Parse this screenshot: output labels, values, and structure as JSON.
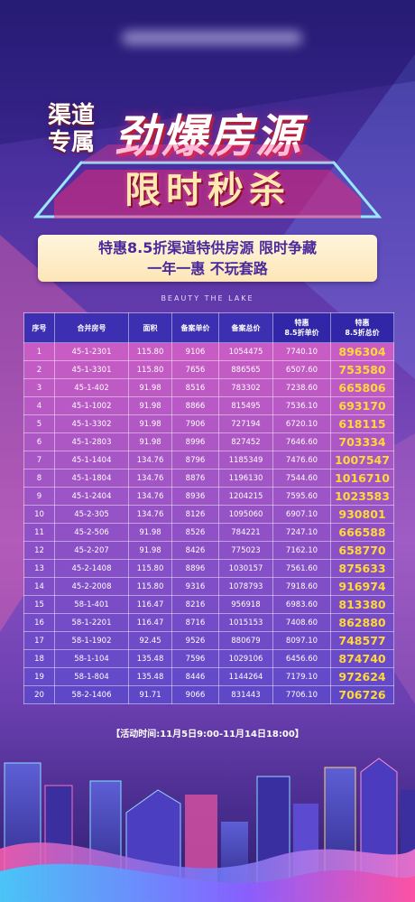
{
  "header": {
    "sub_title_line1": "渠道",
    "sub_title_line2": "专属",
    "main_title": "劲爆房源",
    "banner_text": "限时秒杀"
  },
  "promo": {
    "line1": "特惠8.5折渠道特供房源 限时争藏",
    "line2": "一年一惠 不玩套路"
  },
  "tagline": "BEAUTY THE LAKE",
  "table": {
    "headers": [
      "序号",
      "合并房号",
      "面积",
      "备案单价",
      "备案总价",
      "特惠\n8.5折单价",
      "特惠\n8.5折总价"
    ],
    "rows": [
      [
        "1",
        "45-1-2301",
        "115.80",
        "9106",
        "1054475",
        "7740.10",
        "896304"
      ],
      [
        "2",
        "45-1-3301",
        "115.80",
        "7656",
        "886565",
        "6507.60",
        "753580"
      ],
      [
        "3",
        "45-1-402",
        "91.98",
        "8516",
        "783302",
        "7238.60",
        "665806"
      ],
      [
        "4",
        "45-1-1002",
        "91.98",
        "8866",
        "815495",
        "7536.10",
        "693170"
      ],
      [
        "5",
        "45-1-3302",
        "91.98",
        "7906",
        "727194",
        "6720.10",
        "618115"
      ],
      [
        "6",
        "45-1-2803",
        "91.98",
        "8996",
        "827452",
        "7646.60",
        "703334"
      ],
      [
        "7",
        "45-1-1404",
        "134.76",
        "8796",
        "1185349",
        "7476.60",
        "1007547"
      ],
      [
        "8",
        "45-1-1804",
        "134.76",
        "8876",
        "1196130",
        "7544.60",
        "1016710"
      ],
      [
        "9",
        "45-1-2404",
        "134.76",
        "8936",
        "1204215",
        "7595.60",
        "1023583"
      ],
      [
        "10",
        "45-2-305",
        "134.76",
        "8126",
        "1095060",
        "6907.10",
        "930801"
      ],
      [
        "11",
        "45-2-506",
        "91.98",
        "8526",
        "784221",
        "7247.10",
        "666588"
      ],
      [
        "12",
        "45-2-207",
        "91.98",
        "8426",
        "775023",
        "7162.10",
        "658770"
      ],
      [
        "13",
        "45-2-1408",
        "115.80",
        "8896",
        "1030157",
        "7561.60",
        "875633"
      ],
      [
        "14",
        "45-2-2008",
        "115.80",
        "9316",
        "1078793",
        "7918.60",
        "916974"
      ],
      [
        "15",
        "58-1-401",
        "116.47",
        "8216",
        "956918",
        "6983.60",
        "813380"
      ],
      [
        "16",
        "58-1-2201",
        "116.47",
        "8716",
        "1015153",
        "7408.60",
        "862880"
      ],
      [
        "17",
        "58-1-1902",
        "92.45",
        "9526",
        "880679",
        "8097.10",
        "748577"
      ],
      [
        "18",
        "58-1-104",
        "135.48",
        "7596",
        "1029106",
        "6456.60",
        "874740"
      ],
      [
        "19",
        "58-1-804",
        "135.48",
        "8446",
        "1144264",
        "7179.10",
        "972624"
      ],
      [
        "20",
        "58-2-1406",
        "91.71",
        "9066",
        "831443",
        "7706.10",
        "706726"
      ]
    ]
  },
  "activity_time": "【活动时间:11月5日9:00-11月14日18:00】",
  "colors": {
    "background_top": "#2a1f78",
    "background_mid": "#8a52c4",
    "table_header": "#3d2fb2",
    "highlight_price": "#ffd83a",
    "promo_box": "#fde6b8",
    "title_shadow": "#b41d3c"
  }
}
